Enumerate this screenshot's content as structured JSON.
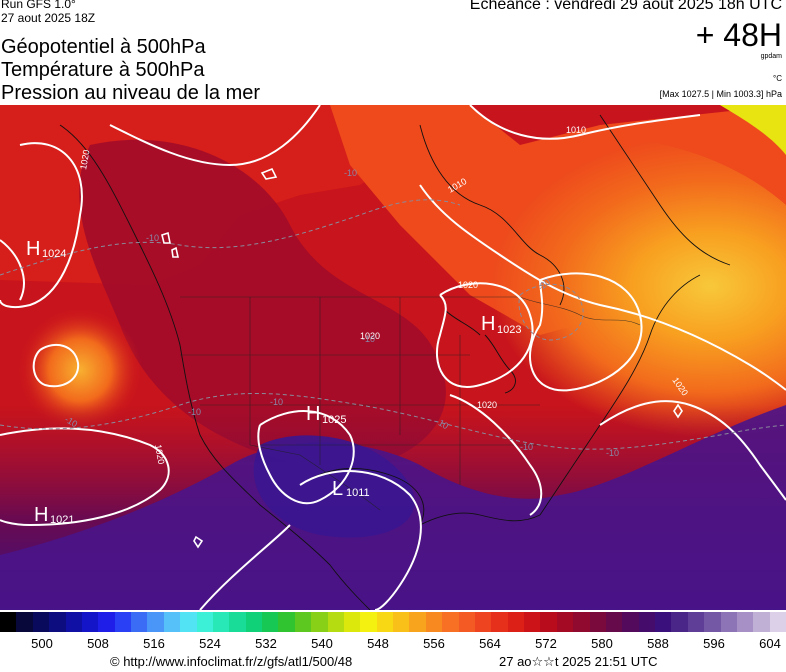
{
  "header": {
    "run_label": "Run GFS 1.0°",
    "run_date": "27 aout 2025 18Z",
    "titles": [
      "Géopotentiel à 500hPa",
      "Température à 500hPa",
      "Pression au niveau de la mer"
    ],
    "valid_time": "Echéance : vendredi 29 aout 2025 18h UTC",
    "lead_time": "+ 48H",
    "unit_geopotential": "gpdam",
    "unit_temperature": "°C",
    "minmax": "[Max 1027.5 | Min 1003.3] hPa"
  },
  "pressure_centers": [
    {
      "type": "H",
      "value": "1024"
    },
    {
      "type": "H",
      "value": "1023"
    },
    {
      "type": "H",
      "value": "1025"
    },
    {
      "type": "L",
      "value": "1011"
    },
    {
      "type": "H",
      "value": "1021"
    }
  ],
  "isobar_labels": [
    "1010",
    "1010",
    "1020",
    "1020",
    "1020",
    "1020",
    "1020",
    "1020"
  ],
  "isotherm_labels": [
    "-20",
    "-10",
    "-10",
    "-10",
    "-10",
    "-10",
    "-10",
    "-10",
    "-10",
    "-10"
  ],
  "colorbar": {
    "colors": [
      "#000000",
      "#08083a",
      "#0a0a5c",
      "#0d0d80",
      "#1010a4",
      "#1414c8",
      "#1e1ee8",
      "#2a40f4",
      "#3a6cf6",
      "#4a96f8",
      "#56c0f8",
      "#52e4f4",
      "#3cf0d8",
      "#28e8b8",
      "#18dc98",
      "#10d078",
      "#18c854",
      "#30c430",
      "#5cc820",
      "#88d018",
      "#b4dc10",
      "#dce80c",
      "#f4f010",
      "#f8d814",
      "#f8c018",
      "#f8a41c",
      "#f88820",
      "#f87024",
      "#f45a24",
      "#ee4420",
      "#e6301c",
      "#dc2018",
      "#cc1418",
      "#b80c1c",
      "#a40a24",
      "#900a30",
      "#7a0a3c",
      "#660a4c",
      "#540a5c",
      "#460c6c",
      "#3a107c",
      "#4a2688",
      "#5e3e96",
      "#7458a6",
      "#8c74b6",
      "#a690c6",
      "#c0b0d6",
      "#dcd0e8"
    ],
    "ticks": [
      "500",
      "508",
      "516",
      "524",
      "532",
      "540",
      "548",
      "556",
      "564",
      "572",
      "580",
      "588",
      "596",
      "604"
    ]
  },
  "footer": {
    "url": "© http://www.infoclimat.fr/z/gfs/atl1/500/48",
    "timestamp": "27 ao☆☆t 2025 21:51 UTC"
  }
}
